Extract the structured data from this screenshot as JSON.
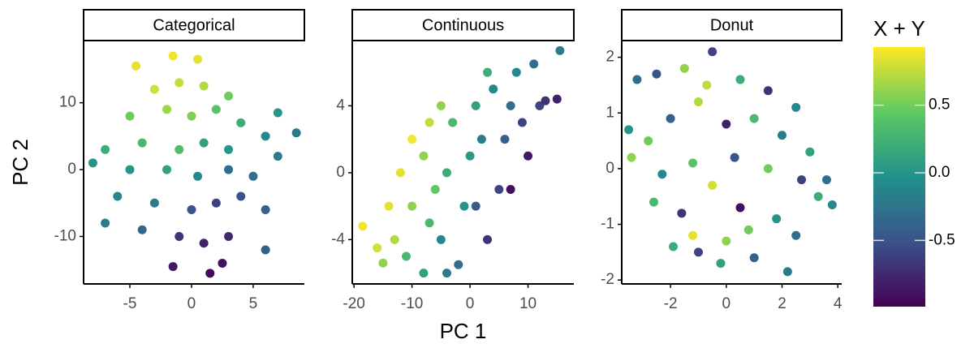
{
  "chart_data": [
    {
      "type": "scatter",
      "title": "Categorical",
      "ylabel": "PC 2",
      "xlim": [
        -8.75,
        9.15
      ],
      "ylim": [
        -17.1,
        19.3
      ],
      "xticks": [
        -5,
        0,
        5
      ],
      "yticks": [
        -10,
        0,
        10
      ],
      "x": [
        -4.5,
        -1.5,
        0.5,
        -3,
        -1,
        1,
        3,
        -5,
        -2,
        0,
        2,
        4,
        -7,
        -4,
        -1,
        1,
        3,
        6,
        8.5,
        -8,
        -5,
        -2,
        0.5,
        3,
        5,
        7,
        -6,
        -3,
        0,
        2,
        4,
        6,
        -7,
        -4,
        -1,
        1,
        3,
        6,
        -1.5,
        1.5,
        2.5,
        7
      ],
      "y": [
        15.5,
        17,
        16.5,
        12,
        13,
        12.5,
        11,
        8,
        9,
        8,
        9,
        7,
        3,
        4,
        3,
        4,
        3,
        5,
        5.5,
        1,
        0,
        0,
        -1,
        0,
        -1,
        2,
        -4,
        -5,
        -6,
        -5,
        -4,
        -6,
        -8,
        -9,
        -10,
        -11,
        -10,
        -12,
        -14.5,
        -15.5,
        -14,
        8.5
      ],
      "color_values": [
        0.85,
        0.9,
        0.85,
        0.8,
        0.75,
        0.7,
        0.5,
        0.5,
        0.65,
        0.55,
        0.4,
        0.2,
        0.2,
        0.3,
        0.35,
        0.1,
        0.0,
        -0.1,
        -0.2,
        0.0,
        0.0,
        0.1,
        -0.1,
        -0.3,
        -0.3,
        -0.2,
        -0.1,
        -0.2,
        -0.5,
        -0.6,
        -0.5,
        -0.4,
        -0.2,
        -0.35,
        -0.7,
        -0.8,
        -0.75,
        -0.4,
        -0.85,
        -0.95,
        -0.9,
        0.0
      ]
    },
    {
      "type": "scatter",
      "title": "Continuous",
      "xlabel": "PC 1",
      "xlim": [
        -20.3,
        17.9
      ],
      "ylim": [
        -6.65,
        7.9
      ],
      "xticks": [
        -20,
        -10,
        0,
        10
      ],
      "yticks": [
        -4,
        0,
        4
      ],
      "x": [
        -18.5,
        -15,
        -13,
        -14,
        -12,
        -10,
        -8,
        -10,
        -11,
        -8,
        -7,
        -6,
        -7,
        -5,
        -3,
        -4,
        -5,
        -2,
        -1,
        0,
        1,
        3,
        4,
        2,
        1,
        3,
        5,
        6,
        7,
        8,
        9,
        10,
        12,
        13,
        15,
        11,
        15.5,
        7,
        -4,
        -16
      ],
      "y": [
        -3.2,
        -5.4,
        -4,
        -2,
        0,
        2,
        1,
        -2,
        -5,
        -6,
        -3,
        -1,
        3,
        4,
        3,
        0,
        -4,
        -5.5,
        -2,
        1,
        4,
        6,
        5,
        2,
        -2,
        -4,
        -1,
        2,
        4,
        6,
        3,
        1,
        4,
        4.3,
        4.4,
        6.5,
        7.3,
        -1,
        -6,
        -4.5
      ],
      "color_values": [
        0.9,
        0.6,
        0.7,
        0.85,
        0.85,
        0.9,
        0.6,
        0.6,
        0.3,
        0.1,
        0.3,
        0.45,
        0.75,
        0.6,
        0.3,
        0.2,
        -0.1,
        -0.3,
        0.0,
        0.05,
        0.1,
        0.2,
        -0.1,
        -0.2,
        -0.45,
        -0.7,
        -0.6,
        -0.4,
        -0.3,
        -0.1,
        -0.6,
        -0.85,
        -0.6,
        -0.7,
        -0.8,
        -0.3,
        -0.2,
        -0.9,
        -0.2,
        0.8
      ]
    },
    {
      "type": "scatter",
      "title": "Donut",
      "xlim": [
        -3.75,
        4.14
      ],
      "ylim": [
        -2.07,
        2.3
      ],
      "xticks": [
        -2,
        0,
        2,
        4
      ],
      "yticks": [
        -2,
        -1,
        0,
        1,
        2
      ],
      "x": [
        -3.2,
        -2.5,
        -1.5,
        -0.5,
        0.5,
        1.5,
        2.5,
        -3.5,
        -2.8,
        -2,
        -1,
        0,
        1,
        2,
        3,
        -3.4,
        -2.3,
        -1.2,
        0.3,
        1.5,
        2.7,
        3.3,
        -2.6,
        -1.6,
        -0.5,
        0.5,
        1.8,
        2.5,
        3.8,
        -1.9,
        -1,
        0,
        1,
        2.2,
        -1.2,
        0.8,
        -0.7,
        3.6,
        -0.2
      ],
      "y": [
        1.6,
        1.7,
        1.8,
        2.1,
        1.6,
        1.4,
        1.1,
        0.7,
        0.5,
        0.9,
        1.2,
        0.8,
        0.9,
        0.6,
        0.3,
        0.2,
        -0.1,
        0.1,
        0.2,
        0,
        -0.2,
        -0.5,
        -0.6,
        -0.8,
        -0.3,
        -0.7,
        -0.9,
        -1.2,
        -0.65,
        -1.4,
        -1.5,
        -1.3,
        -1.6,
        -1.85,
        -1.2,
        -1.1,
        1.5,
        -0.2,
        -1.7
      ],
      "color_values": [
        -0.3,
        -0.5,
        0.6,
        -0.6,
        0.2,
        -0.7,
        -0.1,
        0.0,
        0.5,
        -0.4,
        0.7,
        -0.8,
        0.3,
        -0.2,
        0.1,
        0.6,
        -0.1,
        0.4,
        -0.5,
        0.5,
        -0.6,
        0.2,
        0.3,
        -0.7,
        0.8,
        -0.9,
        0.0,
        -0.3,
        -0.1,
        0.2,
        -0.6,
        0.6,
        -0.4,
        -0.2,
        0.85,
        0.5,
        0.75,
        -0.3,
        0.1
      ]
    }
  ],
  "colorbar": {
    "title": "X + Y",
    "lim": [
      -0.99,
      0.93
    ],
    "ticks": [
      -0.5,
      {
        "value": 0,
        "label": "0.0"
      },
      0.5
    ],
    "colors": [
      "#440154",
      "#3b528b",
      "#21918c",
      "#5ec962",
      "#fde725"
    ]
  }
}
